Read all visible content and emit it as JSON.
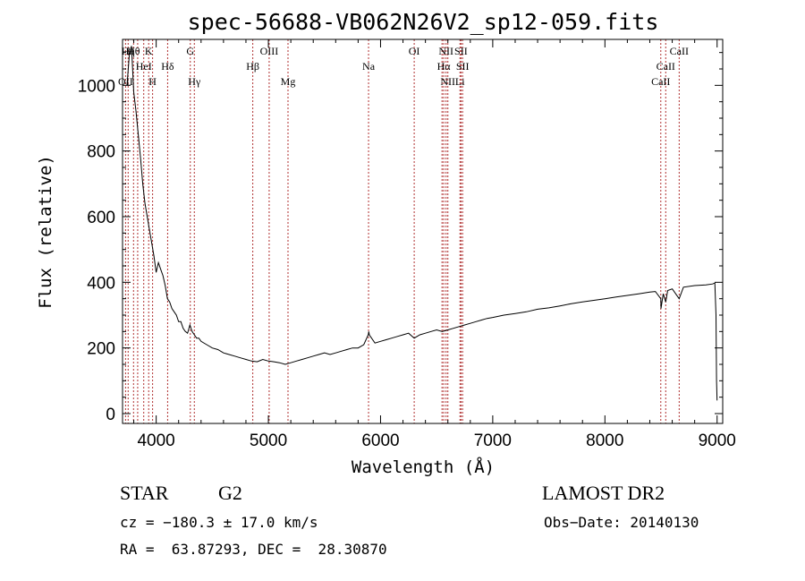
{
  "chart_data": {
    "type": "line",
    "title": "spec-56688-VB062N26V2_sp12-059.fits",
    "xlabel": "Wavelength (Å)",
    "ylabel": "Flux (relative)",
    "xlim": [
      3700,
      9050
    ],
    "ylim": [
      -30,
      1140
    ],
    "xticks": [
      4000,
      5000,
      6000,
      7000,
      8000,
      9000
    ],
    "yticks": [
      0,
      200,
      400,
      600,
      800,
      1000
    ],
    "grid": false,
    "line_color": "#000000",
    "marker_color": "#b03030",
    "series": [
      {
        "x": [
          3740,
          3760,
          3780,
          3800,
          3820,
          3840,
          3860,
          3880,
          3900,
          3920,
          3940,
          3960,
          3980,
          4000,
          4020,
          4040,
          4060,
          4080,
          4100,
          4120,
          4140,
          4160,
          4180,
          4200,
          4220,
          4240,
          4260,
          4280,
          4300,
          4320,
          4340,
          4360,
          4380,
          4400,
          4450,
          4500,
          4550,
          4600,
          4650,
          4700,
          4750,
          4800,
          4850,
          4900,
          4950,
          5000,
          5050,
          5100,
          5150,
          5200,
          5250,
          5300,
          5350,
          5400,
          5450,
          5500,
          5550,
          5600,
          5650,
          5700,
          5750,
          5800,
          5850,
          5890,
          5895,
          5900,
          5950,
          6000,
          6050,
          6100,
          6150,
          6200,
          6250,
          6300,
          6350,
          6400,
          6450,
          6500,
          6550,
          6600,
          6650,
          6700,
          6750,
          6800,
          6850,
          6900,
          6950,
          7000,
          7100,
          7200,
          7300,
          7400,
          7500,
          7600,
          7700,
          7800,
          7900,
          8000,
          8100,
          8200,
          8300,
          8400,
          8450,
          8498,
          8500,
          8520,
          8542,
          8560,
          8600,
          8662,
          8700,
          8800,
          8900,
          8960,
          8980,
          8990,
          8995,
          9000
        ],
        "y": [
          1000,
          1090,
          1120,
          980,
          920,
          850,
          780,
          700,
          640,
          600,
          560,
          520,
          480,
          430,
          460,
          440,
          420,
          390,
          350,
          340,
          320,
          310,
          300,
          280,
          280,
          260,
          250,
          245,
          270,
          250,
          240,
          230,
          230,
          220,
          210,
          200,
          195,
          185,
          180,
          175,
          170,
          165,
          160,
          158,
          165,
          160,
          158,
          155,
          150,
          155,
          160,
          165,
          170,
          175,
          180,
          185,
          180,
          185,
          190,
          195,
          200,
          200,
          210,
          240,
          250,
          240,
          215,
          220,
          225,
          230,
          235,
          240,
          245,
          230,
          240,
          245,
          250,
          255,
          250,
          255,
          260,
          265,
          270,
          275,
          280,
          285,
          290,
          293,
          300,
          305,
          310,
          318,
          322,
          328,
          335,
          340,
          345,
          350,
          355,
          360,
          365,
          370,
          372,
          350,
          320,
          365,
          340,
          375,
          380,
          350,
          385,
          390,
          392,
          395,
          398,
          300,
          100,
          40
        ]
      }
    ],
    "lines": [
      {
        "wl": 3727,
        "label": "OII",
        "row": 2
      },
      {
        "wl": 3750,
        "label": "Hη",
        "row": 0
      },
      {
        "wl": 3798,
        "label": "Hθ",
        "row": 0
      },
      {
        "wl": 3835,
        "label": "",
        "row": 0
      },
      {
        "wl": 3889,
        "label": "HeI",
        "row": 1
      },
      {
        "wl": 3933,
        "label": "K",
        "row": 0
      },
      {
        "wl": 3968,
        "label": "H",
        "row": 2
      },
      {
        "wl": 4102,
        "label": "Hδ",
        "row": 1
      },
      {
        "wl": 4304,
        "label": "G",
        "row": 0
      },
      {
        "wl": 4340,
        "label": "Hγ",
        "row": 2
      },
      {
        "wl": 4861,
        "label": "Hβ",
        "row": 1
      },
      {
        "wl": 5007,
        "label": "OIII",
        "row": 0
      },
      {
        "wl": 5175,
        "label": "Mg",
        "row": 2
      },
      {
        "wl": 5893,
        "label": "Na",
        "row": 1
      },
      {
        "wl": 6300,
        "label": "OI",
        "row": 0
      },
      {
        "wl": 6548,
        "label": "",
        "row": 0
      },
      {
        "wl": 6563,
        "label": "Hα",
        "row": 1
      },
      {
        "wl": 6584,
        "label": "NII",
        "row": 0
      },
      {
        "wl": 6600,
        "label": "NII",
        "row": 2
      },
      {
        "wl": 6708,
        "label": "Li",
        "row": 2
      },
      {
        "wl": 6717,
        "label": "SII",
        "row": 0
      },
      {
        "wl": 6731,
        "label": "SII",
        "row": 1
      },
      {
        "wl": 8498,
        "label": "CaII",
        "row": 2
      },
      {
        "wl": 8542,
        "label": "CaII",
        "row": 1
      },
      {
        "wl": 8662,
        "label": "CaII",
        "row": 0
      }
    ]
  },
  "info": {
    "object_class": "STAR",
    "subclass": "G2",
    "survey": "LAMOST DR2",
    "redshift": "cz = −180.3 ± 17.0 km/s",
    "obs_date": "Obs−Date: 20140130",
    "coords": "RA =  63.87293, DEC =  28.30870"
  }
}
